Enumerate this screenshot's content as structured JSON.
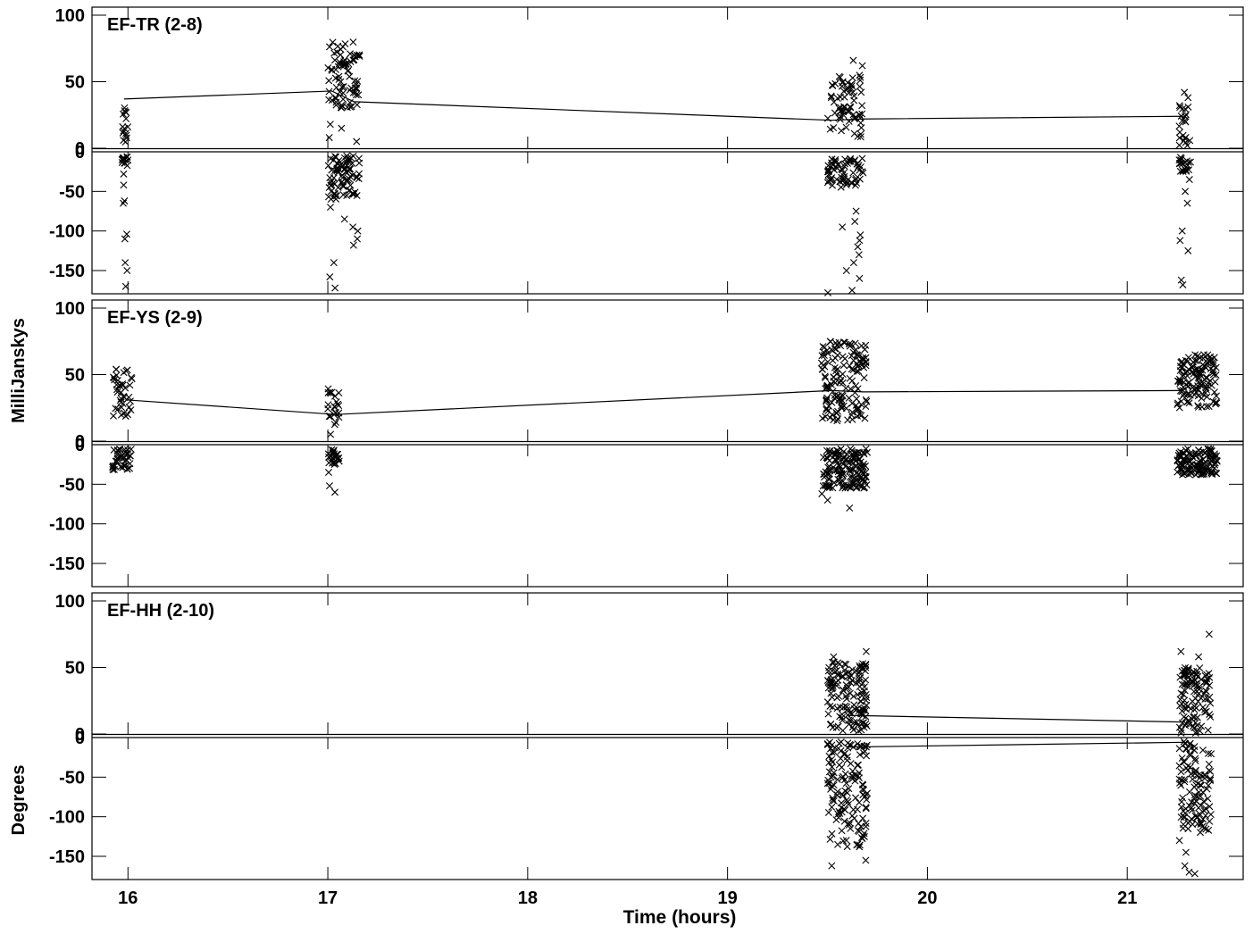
{
  "chart_data": {
    "type": "scatter",
    "x_axis": {
      "label": "Time (hours)",
      "range": [
        15.82,
        21.58
      ],
      "ticks": [
        16,
        17,
        18,
        19,
        20,
        21
      ],
      "tick_labels": [
        "16",
        "17",
        "18",
        "19",
        "20",
        "21"
      ]
    },
    "y_axis_labels": {
      "amplitude": "MilliJanskys",
      "phase": "Degrees"
    },
    "amplitude_ticks": [
      100,
      50,
      0
    ],
    "amplitude_tick_labels": [
      "100",
      "50",
      "0"
    ],
    "phase_ticks": [
      0,
      -50,
      -100,
      -150
    ],
    "phase_tick_labels": [
      "0",
      "-50",
      "-100",
      "-150"
    ],
    "marker": "x",
    "colors": {
      "ink": "#000000",
      "background": "#ffffff"
    },
    "panels": [
      {
        "label": "EF-TR (2-8)",
        "amp_model": {
          "x": [
            15.98,
            17.02,
            17.13,
            19.52,
            19.68,
            21.28
          ],
          "y": [
            37,
            43,
            35,
            21,
            22,
            24
          ]
        },
        "phase_model": {
          "x": [],
          "y": []
        },
        "scans": [
          {
            "t0": 15.97,
            "t1": 16.0,
            "amp_range": [
              2,
              32
            ],
            "phase_range": [
              -20,
              -5
            ],
            "n": 16,
            "phase_outliers": [
              -28,
              -42,
              -62,
              -65,
              -104,
              -110,
              -140,
              -150,
              -170
            ]
          },
          {
            "t0": 17.0,
            "t1": 17.16,
            "amp_range": [
              30,
              80
            ],
            "phase_range": [
              -60,
              -5
            ],
            "n": 80,
            "amp_outliers": [
              15,
              18,
              8,
              5
            ],
            "phase_outliers": [
              -70,
              -85,
              -100,
              -118,
              -140,
              -158,
              -172,
              -110,
              -95
            ]
          },
          {
            "t0": 19.5,
            "t1": 19.68,
            "amp_range": [
              8,
              55
            ],
            "phase_range": [
              -45,
              -8
            ],
            "n": 70,
            "amp_outliers": [
              62,
              66
            ],
            "phase_outliers": [
              -75,
              -95,
              -105,
              -120,
              -130,
              -140,
              -150,
              -160,
              -175,
              -88,
              -112,
              -178
            ]
          },
          {
            "t0": 21.26,
            "t1": 21.32,
            "amp_range": [
              0,
              35
            ],
            "phase_range": [
              -25,
              -5
            ],
            "n": 22,
            "amp_outliers": [
              42,
              38
            ],
            "phase_outliers": [
              -35,
              -50,
              -65,
              -100,
              -112,
              -125,
              -162,
              -168
            ]
          }
        ]
      },
      {
        "label": "EF-YS (2-9)",
        "amp_model": {
          "x": [
            15.99,
            17.04,
            19.52,
            19.68,
            21.28
          ],
          "y": [
            31,
            20,
            38,
            37,
            38
          ]
        },
        "phase_model": {
          "x": [],
          "y": []
        },
        "scans": [
          {
            "t0": 15.92,
            "t1": 16.02,
            "amp_range": [
              18,
              55
            ],
            "phase_range": [
              -32,
              -5
            ],
            "n": 40
          },
          {
            "t0": 17.0,
            "t1": 17.06,
            "amp_range": [
              5,
              42
            ],
            "phase_range": [
              -25,
              -5
            ],
            "n": 24,
            "phase_outliers": [
              -35,
              -52,
              -60
            ]
          },
          {
            "t0": 19.47,
            "t1": 19.7,
            "amp_range": [
              15,
              75
            ],
            "phase_range": [
              -55,
              -5
            ],
            "n": 150,
            "phase_outliers": [
              -62,
              -70,
              -80
            ]
          },
          {
            "t0": 21.25,
            "t1": 21.45,
            "amp_range": [
              25,
              65
            ],
            "phase_range": [
              -38,
              -5
            ],
            "n": 130
          }
        ]
      },
      {
        "label": "EF-HH (2-10)",
        "amp_model": {
          "x": [
            19.6,
            21.28
          ],
          "y": [
            14,
            9
          ]
        },
        "phase_model": {
          "x": [
            19.6,
            21.28
          ],
          "y": [
            -12,
            -6
          ]
        },
        "scans": [
          {
            "t0": 19.5,
            "t1": 19.7,
            "amp_range": [
              0,
              55
            ],
            "phase_range": [
              -140,
              -5
            ],
            "n": 140,
            "amp_outliers": [
              62,
              58
            ],
            "phase_outliers": [
              -155,
              -162
            ]
          },
          {
            "t0": 21.26,
            "t1": 21.42,
            "amp_range": [
              0,
              50
            ],
            "phase_range": [
              -120,
              -5
            ],
            "n": 110,
            "amp_outliers": [
              62,
              75,
              58
            ],
            "phase_outliers": [
              -130,
              -145,
              -162,
              -170,
              -172
            ]
          }
        ]
      }
    ]
  }
}
